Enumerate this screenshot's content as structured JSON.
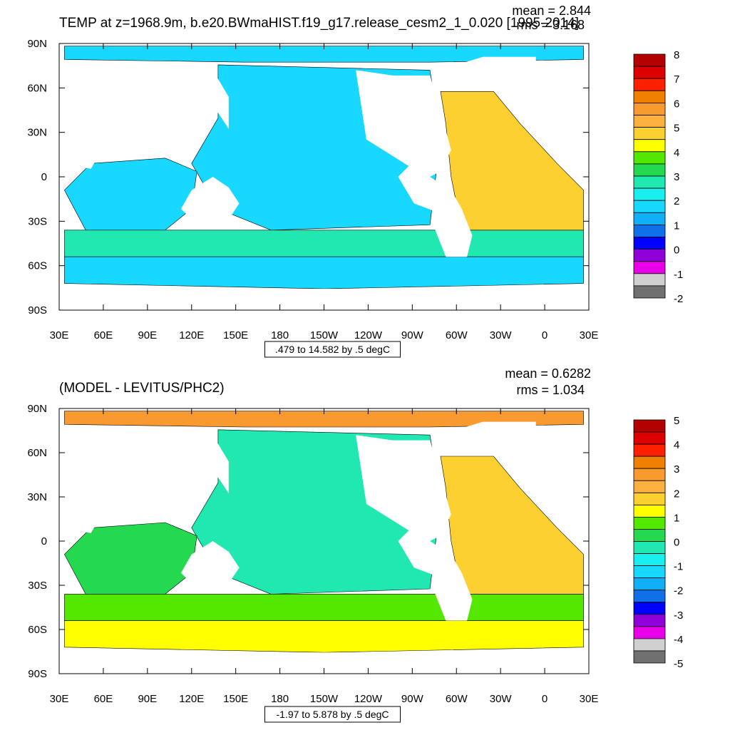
{
  "chart_data": [
    {
      "type": "heatmap",
      "title": "TEMP at z=1968.9m, b.e20.BWmaHIST.f19_g17.release_cesm2_1_0.020 [1995-2014]",
      "stats": {
        "mean": "mean = 2.844",
        "rms": "rms = 3.168"
      },
      "x_ticks": [
        "30E",
        "60E",
        "90E",
        "120E",
        "150E",
        "180",
        "150W",
        "120W",
        "90W",
        "60W",
        "30W",
        "0",
        "30E"
      ],
      "y_ticks": [
        "90N",
        "60N",
        "30N",
        "0",
        "30S",
        "60S",
        "90S"
      ],
      "contour_info": ".479 to 14.582 by .5 degC",
      "colorbar": {
        "labels": [
          "8",
          "7",
          "6",
          "5",
          "4",
          "3",
          "2",
          "1",
          "0",
          "-1",
          "-2"
        ],
        "colors": [
          "#b40000",
          "#dc0000",
          "#ff2000",
          "#f08000",
          "#f89a30",
          "#fbb040",
          "#fcd030",
          "#ffff00",
          "#54e800",
          "#24d850",
          "#20e8b0",
          "#18f0f0",
          "#18d8ff",
          "#10b0f8",
          "#1070e8",
          "#0000ff",
          "#9000d8",
          "#e800e8",
          "#d0d0d0",
          "#707070"
        ]
      },
      "regions": [
        {
          "name": "arctic",
          "color": "#18d8ff"
        },
        {
          "name": "pacific",
          "color": "#18d8ff"
        },
        {
          "name": "indian",
          "color": "#18d8ff"
        },
        {
          "name": "southern-band",
          "color": "#20e8b0"
        },
        {
          "name": "antarctic",
          "color": "#18d8ff"
        },
        {
          "name": "atlantic",
          "color": "#fcd030"
        }
      ]
    },
    {
      "type": "heatmap",
      "title": "(MODEL - LEVITUS/PHC2)",
      "stats": {
        "mean": "mean = 0.6282",
        "rms": "rms = 1.034"
      },
      "x_ticks": [
        "30E",
        "60E",
        "90E",
        "120E",
        "150E",
        "180",
        "150W",
        "120W",
        "90W",
        "60W",
        "30W",
        "0",
        "30E"
      ],
      "y_ticks": [
        "90N",
        "60N",
        "30N",
        "0",
        "30S",
        "60S",
        "90S"
      ],
      "contour_info": "-1.97 to 5.878 by .5 degC",
      "colorbar": {
        "labels": [
          "5",
          "4",
          "3",
          "2",
          "1",
          "0",
          "-1",
          "-2",
          "-3",
          "-4",
          "-5"
        ],
        "colors": [
          "#b40000",
          "#dc0000",
          "#ff2000",
          "#f08000",
          "#f89a30",
          "#fbb040",
          "#fcd030",
          "#ffff00",
          "#54e800",
          "#24d850",
          "#20e8b0",
          "#18f0f0",
          "#18d8ff",
          "#10b0f8",
          "#1070e8",
          "#0000ff",
          "#9000d8",
          "#e800e8",
          "#d0d0d0",
          "#707070"
        ]
      },
      "regions": [
        {
          "name": "arctic",
          "color": "#f89a30"
        },
        {
          "name": "pacific",
          "color": "#20e8b0"
        },
        {
          "name": "indian",
          "color": "#24d850"
        },
        {
          "name": "southern-band",
          "color": "#54e800"
        },
        {
          "name": "antarctic",
          "color": "#ffff00"
        },
        {
          "name": "atlantic",
          "color": "#fcd030"
        }
      ]
    }
  ]
}
